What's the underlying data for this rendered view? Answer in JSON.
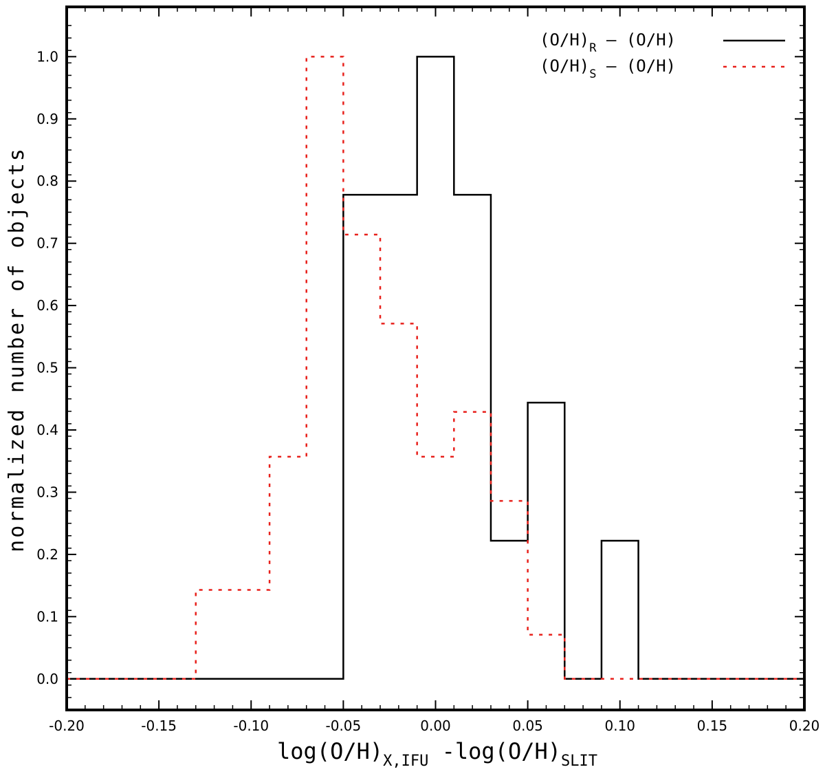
{
  "chart_data": {
    "type": "histogram-step",
    "xlabel": {
      "main1": "log(O/H)",
      "sub1": "X,IFU",
      "main2": " -log(O/H)",
      "sub2": "SLIT"
    },
    "ylabel": "normalized number of objects",
    "xlim": [
      -0.2,
      0.2
    ],
    "ylim": [
      -0.05,
      1.08
    ],
    "x_ticks": [
      -0.2,
      -0.15,
      -0.1,
      -0.05,
      0.0,
      0.05,
      0.1,
      0.15,
      0.2
    ],
    "x_tick_labels": [
      "-0.20",
      "-0.15",
      "-0.10",
      "-0.05",
      "0.00",
      "0.05",
      "0.10",
      "0.15",
      "0.20"
    ],
    "y_ticks": [
      0.0,
      0.1,
      0.2,
      0.3,
      0.4,
      0.5,
      0.6,
      0.7,
      0.8,
      0.9,
      1.0
    ],
    "y_tick_labels": [
      "0.0",
      "0.1",
      "0.2",
      "0.3",
      "0.4",
      "0.5",
      "0.6",
      "0.7",
      "0.8",
      "0.9",
      "1.0"
    ],
    "legend_position": "top-right",
    "series": [
      {
        "legend": {
          "pre": "(O/H)",
          "sub": "R",
          "post": " – (O/H)"
        },
        "color": "#000000",
        "style": "solid",
        "steps": [
          [
            -0.2,
            0.0
          ],
          [
            -0.05,
            0.778
          ],
          [
            -0.01,
            1.0
          ],
          [
            0.01,
            0.778
          ],
          [
            0.03,
            0.222
          ],
          [
            0.05,
            0.444
          ],
          [
            0.07,
            0.0
          ],
          [
            0.09,
            0.222
          ],
          [
            0.11,
            0.0
          ],
          [
            0.2,
            0.0
          ]
        ]
      },
      {
        "legend": {
          "pre": "(O/H)",
          "sub": "S",
          "post": " – (O/H)"
        },
        "color": "#e8201b",
        "style": "dotted",
        "steps": [
          [
            -0.2,
            0.0
          ],
          [
            -0.13,
            0.143
          ],
          [
            -0.09,
            0.357
          ],
          [
            -0.07,
            1.0
          ],
          [
            -0.05,
            0.714
          ],
          [
            -0.03,
            0.571
          ],
          [
            -0.01,
            0.357
          ],
          [
            0.01,
            0.429
          ],
          [
            0.03,
            0.286
          ],
          [
            0.05,
            0.071
          ],
          [
            0.07,
            0.0
          ],
          [
            0.2,
            0.0
          ]
        ]
      }
    ]
  }
}
